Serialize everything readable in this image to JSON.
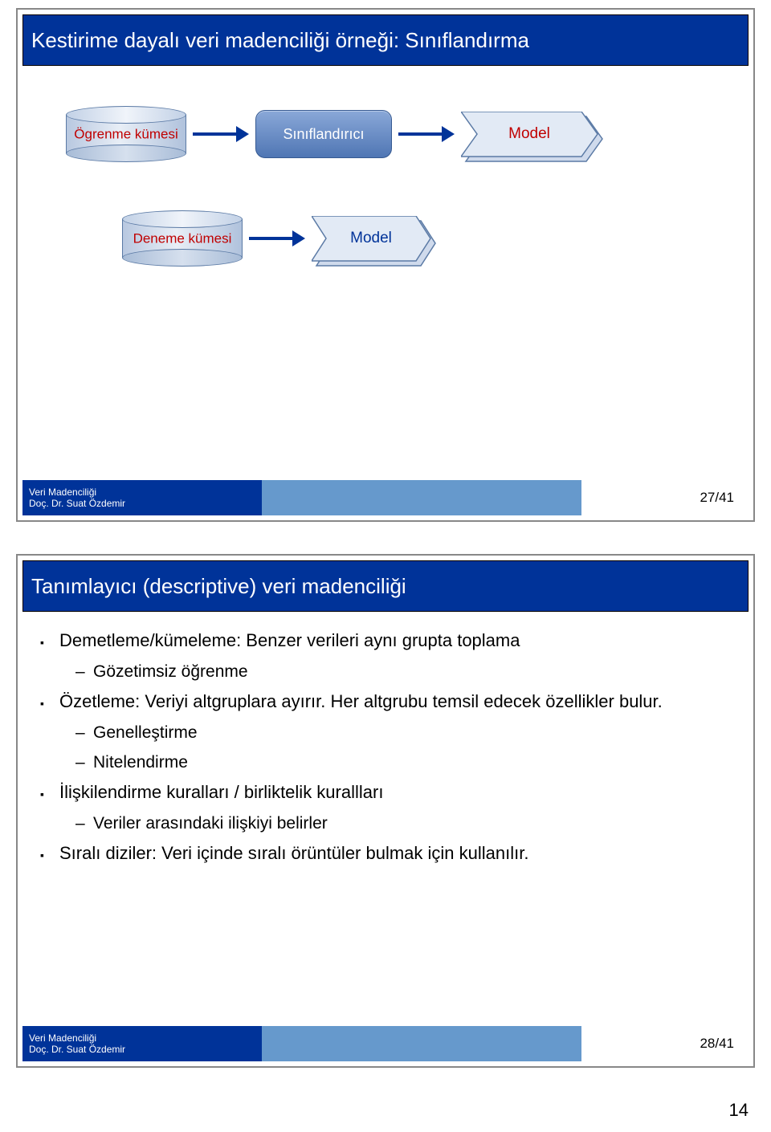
{
  "slide1": {
    "title": "Kestirime dayalı veri madenciliği örneği: Sınıflandırma",
    "diagram": {
      "row1": {
        "cylinder": "Ögrenme kümesi",
        "cylinder_color": "#c00000",
        "box": "Sınıflandırıcı",
        "ribbon": "Model",
        "ribbon_color": "#c00000"
      },
      "row2": {
        "cylinder": "Deneme kümesi",
        "cylinder_color": "#c00000",
        "ribbon": "Model",
        "ribbon_color": "#003399"
      }
    },
    "footer": {
      "line1": "Veri Madenciliği",
      "line2": "Doç. Dr. Suat Özdemir",
      "page": "27/41"
    }
  },
  "slide2": {
    "title": "Tanımlayıcı (descriptive) veri madenciliği",
    "bullets": [
      {
        "text": "Demetleme/kümeleme: Benzer verileri aynı grupta toplama",
        "children": [
          {
            "text": "Gözetimsiz öğrenme"
          }
        ]
      },
      {
        "text": "Özetleme: Veriyi altgruplara ayırır. Her altgrubu temsil edecek özellikler bulur.",
        "children": [
          {
            "text": "Genelleştirme"
          },
          {
            "text": "Nitelendirme"
          }
        ]
      },
      {
        "text": "İlişkilendirme kuralları / birliktelik kurallları",
        "children": [
          {
            "text": "Veriler arasındaki ilişkiyi belirler"
          }
        ]
      },
      {
        "text": "Sıralı diziler: Veri içinde sıralı örüntüler bulmak için kullanılır."
      }
    ],
    "footer": {
      "line1": "Veri Madenciliği",
      "line2": "Doç. Dr. Suat Özdemir",
      "page": "28/41"
    }
  },
  "page_number": "14",
  "colors": {
    "title_bg": "#003399",
    "footer_mid": "#6699cc",
    "arrow": "#003399",
    "box_grad_top": "#8aa8d8",
    "box_grad_bottom": "#4f76b4",
    "ribbon_fill": "#dce5f2",
    "ribbon_stroke": "#5b7aa5"
  }
}
